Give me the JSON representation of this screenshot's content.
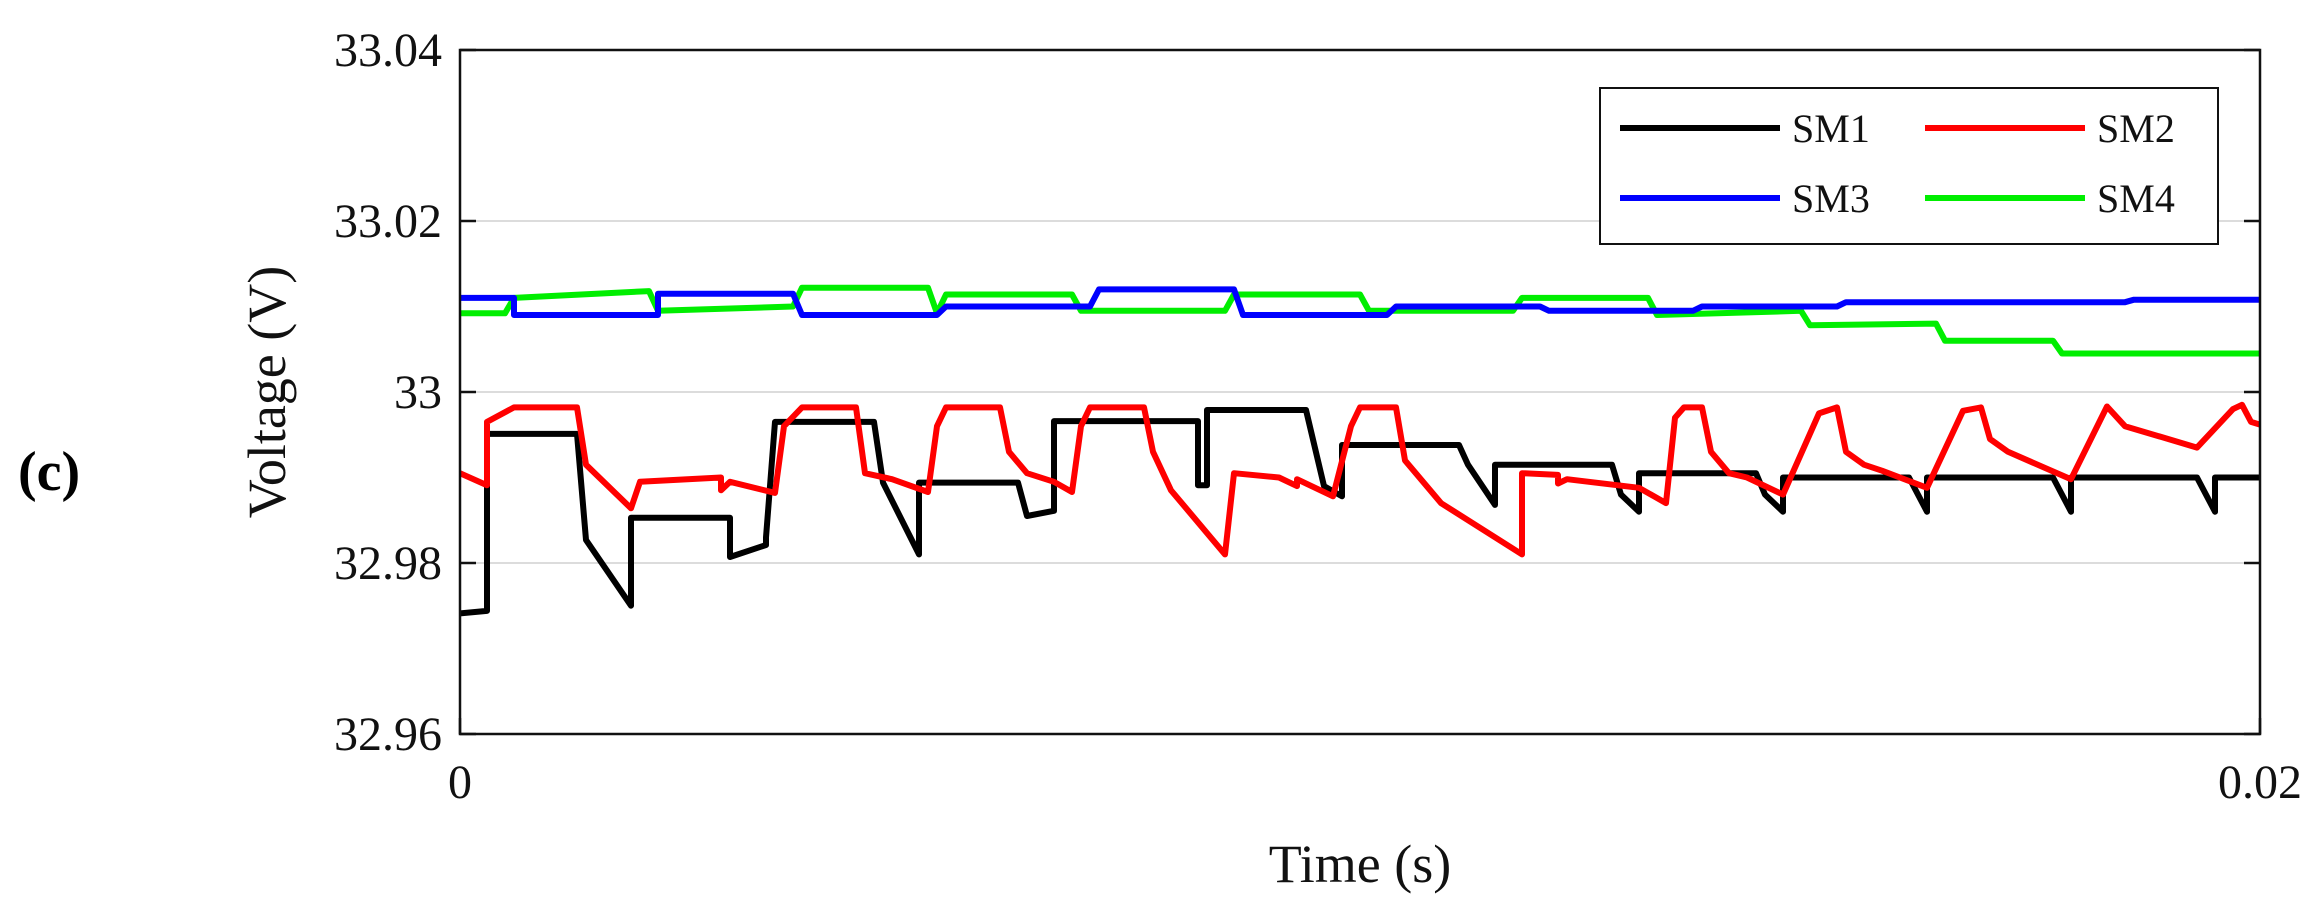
{
  "panel_label": "(c)",
  "chart_data": {
    "type": "line",
    "xlabel": "Time (s)",
    "ylabel": "Voltage (V)",
    "xlim": [
      0,
      0.02
    ],
    "ylim": [
      32.96,
      33.04
    ],
    "x_ticks": [
      0,
      0.02
    ],
    "x_tick_labels": [
      "0",
      "0.02"
    ],
    "y_ticks": [
      32.96,
      32.98,
      33.0,
      33.02,
      33.04
    ],
    "y_tick_labels": [
      "32.96",
      "32.98",
      "33",
      "33.02",
      "33.04"
    ],
    "grid": "horizontal",
    "legend_position": "top-right",
    "series": [
      {
        "name": "SM1",
        "color": "#000000",
        "points": [
          [
            0.0,
            32.9741
          ],
          [
            0.0003,
            32.9744
          ],
          [
            0.0003,
            32.9754
          ],
          [
            0.0003,
            32.9951
          ],
          [
            0.0013,
            32.9951
          ],
          [
            0.0014,
            32.9827
          ],
          [
            0.0019,
            32.975
          ],
          [
            0.0019,
            32.9853
          ],
          [
            0.003,
            32.9853
          ],
          [
            0.003,
            32.9807
          ],
          [
            0.0034,
            32.9821
          ],
          [
            0.0034,
            32.983
          ],
          [
            0.0035,
            32.9965
          ],
          [
            0.0046,
            32.9965
          ],
          [
            0.0047,
            32.9894
          ],
          [
            0.0051,
            32.981
          ],
          [
            0.0051,
            32.9894
          ],
          [
            0.0062,
            32.9894
          ],
          [
            0.0063,
            32.9855
          ],
          [
            0.0066,
            32.9861
          ],
          [
            0.0066,
            32.9966
          ],
          [
            0.0082,
            32.9966
          ],
          [
            0.0082,
            32.9891
          ],
          [
            0.0083,
            32.9891
          ],
          [
            0.0083,
            32.9979
          ],
          [
            0.0094,
            32.9979
          ],
          [
            0.0096,
            32.989
          ],
          [
            0.0098,
            32.9878
          ],
          [
            0.0098,
            32.9938
          ],
          [
            0.0111,
            32.9938
          ],
          [
            0.0112,
            32.9915
          ],
          [
            0.0115,
            32.9868
          ],
          [
            0.0115,
            32.9915
          ],
          [
            0.0128,
            32.9915
          ],
          [
            0.0129,
            32.988
          ],
          [
            0.0131,
            32.986
          ],
          [
            0.0131,
            32.9905
          ],
          [
            0.0144,
            32.9905
          ],
          [
            0.0145,
            32.988
          ],
          [
            0.0147,
            32.986
          ],
          [
            0.0147,
            32.99
          ],
          [
            0.0161,
            32.99
          ],
          [
            0.0162,
            32.988
          ],
          [
            0.0163,
            32.986
          ],
          [
            0.0163,
            32.99
          ],
          [
            0.0177,
            32.99
          ],
          [
            0.0178,
            32.988
          ],
          [
            0.0179,
            32.986
          ],
          [
            0.0179,
            32.99
          ],
          [
            0.0193,
            32.99
          ],
          [
            0.0194,
            32.988
          ],
          [
            0.0195,
            32.986
          ],
          [
            0.0195,
            32.99
          ],
          [
            0.02,
            32.99
          ]
        ]
      },
      {
        "name": "SM2",
        "color": "#ff0000",
        "points": [
          [
            0.0,
            32.9905
          ],
          [
            0.0003,
            32.9891
          ],
          [
            0.0003,
            32.9965
          ],
          [
            0.0006,
            32.9982
          ],
          [
            0.0013,
            32.9982
          ],
          [
            0.0014,
            32.9915
          ],
          [
            0.0019,
            32.9864
          ],
          [
            0.002,
            32.9895
          ],
          [
            0.0029,
            32.99
          ],
          [
            0.0029,
            32.9885
          ],
          [
            0.003,
            32.9895
          ],
          [
            0.0035,
            32.9882
          ],
          [
            0.0036,
            32.996
          ],
          [
            0.0038,
            32.9982
          ],
          [
            0.0044,
            32.9982
          ],
          [
            0.0045,
            32.9905
          ],
          [
            0.0048,
            32.9898
          ],
          [
            0.0052,
            32.9883
          ],
          [
            0.0053,
            32.996
          ],
          [
            0.0054,
            32.9982
          ],
          [
            0.006,
            32.9982
          ],
          [
            0.0061,
            32.993
          ],
          [
            0.0063,
            32.9905
          ],
          [
            0.0066,
            32.9895
          ],
          [
            0.0068,
            32.9883
          ],
          [
            0.0069,
            32.996
          ],
          [
            0.007,
            32.9982
          ],
          [
            0.0076,
            32.9982
          ],
          [
            0.0077,
            32.993
          ],
          [
            0.0079,
            32.9885
          ],
          [
            0.0085,
            32.981
          ],
          [
            0.0086,
            32.9905
          ],
          [
            0.0091,
            32.99
          ],
          [
            0.0093,
            32.989
          ],
          [
            0.0093,
            32.9898
          ],
          [
            0.0097,
            32.9878
          ],
          [
            0.0099,
            32.996
          ],
          [
            0.01,
            32.9982
          ],
          [
            0.0104,
            32.9982
          ],
          [
            0.0105,
            32.992
          ],
          [
            0.0109,
            32.987
          ],
          [
            0.0118,
            32.981
          ],
          [
            0.0118,
            32.9905
          ],
          [
            0.0122,
            32.9903
          ],
          [
            0.0122,
            32.9893
          ],
          [
            0.0123,
            32.9898
          ],
          [
            0.0131,
            32.9888
          ],
          [
            0.0134,
            32.987
          ],
          [
            0.0135,
            32.997
          ],
          [
            0.0136,
            32.9982
          ],
          [
            0.0138,
            32.9982
          ],
          [
            0.0139,
            32.993
          ],
          [
            0.0141,
            32.9905
          ],
          [
            0.0143,
            32.99
          ],
          [
            0.0147,
            32.988
          ],
          [
            0.0151,
            32.9975
          ],
          [
            0.0153,
            32.9982
          ],
          [
            0.0154,
            32.993
          ],
          [
            0.0156,
            32.9915
          ],
          [
            0.0158,
            32.9908
          ],
          [
            0.0163,
            32.9888
          ],
          [
            0.0167,
            32.9978
          ],
          [
            0.0169,
            32.9982
          ],
          [
            0.017,
            32.9945
          ],
          [
            0.0172,
            32.993
          ],
          [
            0.0179,
            32.9898
          ],
          [
            0.0183,
            32.9983
          ],
          [
            0.0185,
            32.996
          ],
          [
            0.0193,
            32.9935
          ],
          [
            0.0197,
            32.998
          ],
          [
            0.0198,
            32.9985
          ],
          [
            0.0199,
            32.9965
          ],
          [
            0.021,
            32.993
          ]
        ]
      },
      {
        "name": "SM3",
        "color": "#0000ff",
        "points": [
          [
            0.0,
            33.011
          ],
          [
            0.0006,
            33.011
          ],
          [
            0.0006,
            33.009
          ],
          [
            0.0022,
            33.009
          ],
          [
            0.0022,
            33.0115
          ],
          [
            0.0037,
            33.0115
          ],
          [
            0.0038,
            33.009
          ],
          [
            0.0053,
            33.009
          ],
          [
            0.0054,
            33.01
          ],
          [
            0.007,
            33.01
          ],
          [
            0.0071,
            33.012
          ],
          [
            0.0086,
            33.012
          ],
          [
            0.0087,
            33.009
          ],
          [
            0.0103,
            33.009
          ],
          [
            0.0104,
            33.01
          ],
          [
            0.012,
            33.01
          ],
          [
            0.0121,
            33.0095
          ],
          [
            0.0137,
            33.0095
          ],
          [
            0.0138,
            33.01
          ],
          [
            0.0153,
            33.01
          ],
          [
            0.0154,
            33.0105
          ],
          [
            0.0185,
            33.0105
          ],
          [
            0.0186,
            33.0108
          ],
          [
            0.02,
            33.0108
          ]
        ]
      },
      {
        "name": "SM4",
        "color": "#00ee00",
        "points": [
          [
            0.0,
            33.0092
          ],
          [
            0.0005,
            33.0092
          ],
          [
            0.0006,
            33.011
          ],
          [
            0.0021,
            33.0118
          ],
          [
            0.0022,
            33.0095
          ],
          [
            0.0037,
            33.01
          ],
          [
            0.0038,
            33.0122
          ],
          [
            0.0052,
            33.0122
          ],
          [
            0.0053,
            33.0092
          ],
          [
            0.0054,
            33.0114
          ],
          [
            0.0068,
            33.0114
          ],
          [
            0.0069,
            33.0095
          ],
          [
            0.0085,
            33.0095
          ],
          [
            0.0086,
            33.0114
          ],
          [
            0.01,
            33.0114
          ],
          [
            0.0101,
            33.0095
          ],
          [
            0.0117,
            33.0095
          ],
          [
            0.0118,
            33.011
          ],
          [
            0.0132,
            33.011
          ],
          [
            0.0133,
            33.009
          ],
          [
            0.0149,
            33.0095
          ],
          [
            0.015,
            33.0078
          ],
          [
            0.0164,
            33.008
          ],
          [
            0.0165,
            33.006
          ],
          [
            0.0177,
            33.006
          ],
          [
            0.0178,
            33.0045
          ],
          [
            0.02,
            33.0045
          ]
        ]
      }
    ]
  }
}
